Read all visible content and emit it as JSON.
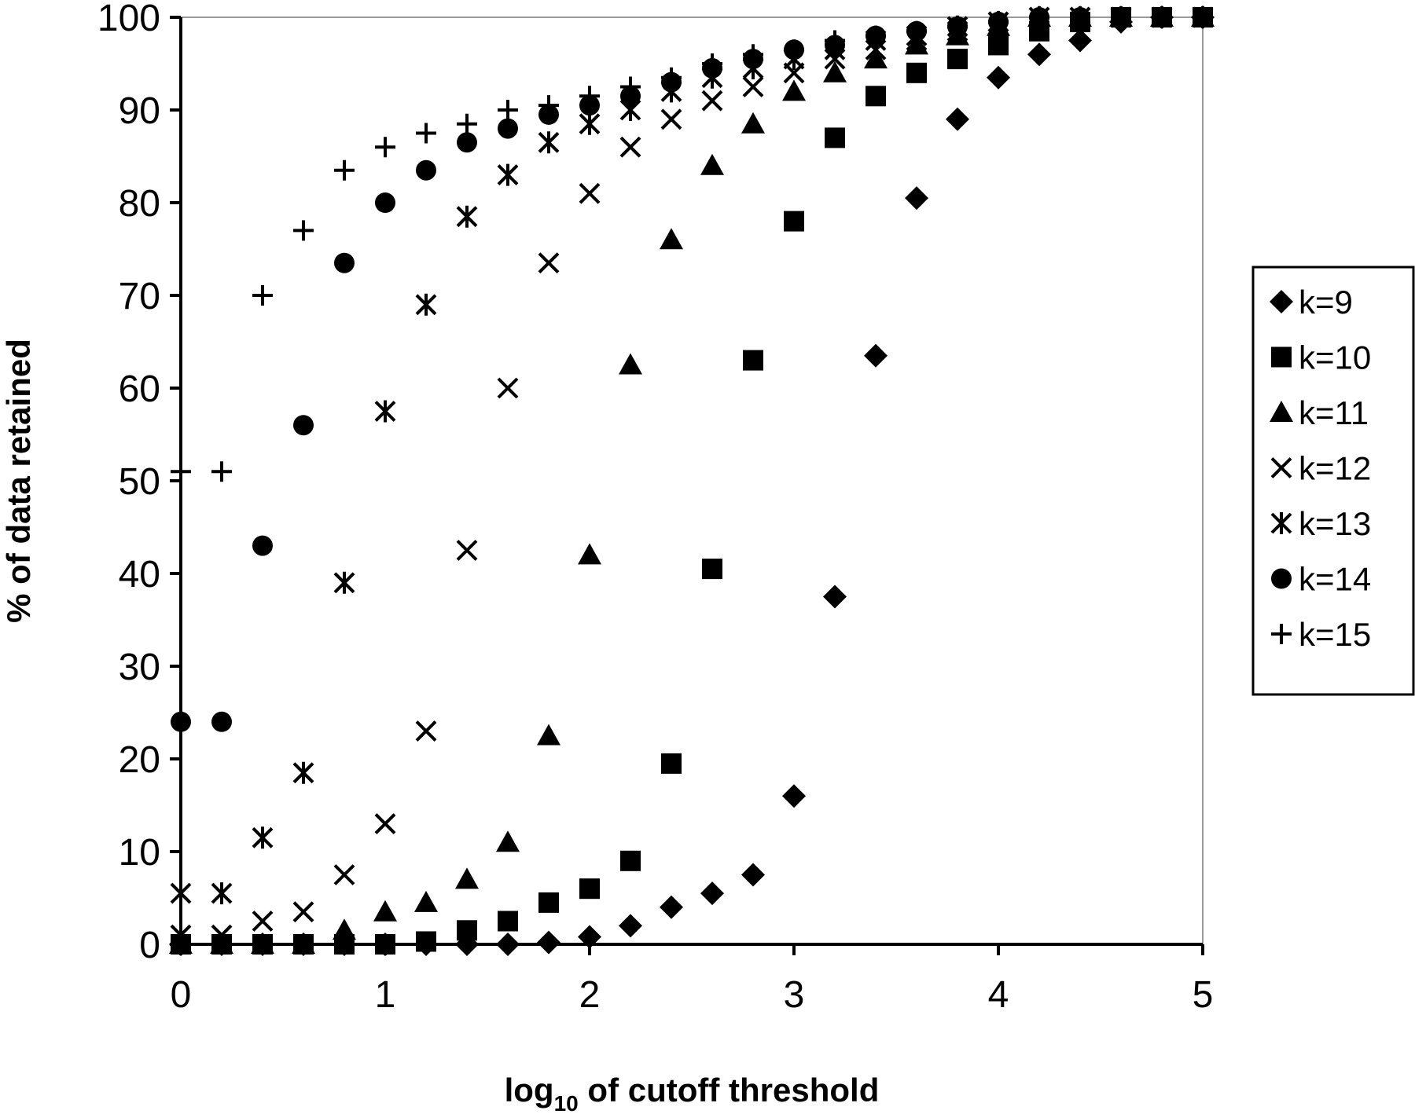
{
  "chart_data": {
    "type": "scatter",
    "title": "",
    "xlabel": {
      "base": "log",
      "subscript": "10",
      "rest": " of cutoff threshold"
    },
    "ylabel": "% of data retained",
    "xlim": [
      0,
      5
    ],
    "ylim": [
      0,
      100
    ],
    "x_ticks": [
      "0",
      "1",
      "2",
      "3",
      "4",
      "5"
    ],
    "y_ticks": [
      "0",
      "10",
      "20",
      "30",
      "40",
      "50",
      "60",
      "70",
      "80",
      "90",
      "100"
    ],
    "grid": false,
    "legend_position": "right",
    "x": [
      0,
      0.2,
      0.4,
      0.6,
      0.8,
      1.0,
      1.2,
      1.4,
      1.6,
      1.8,
      2.0,
      2.2,
      2.4,
      2.6,
      2.8,
      3.0,
      3.2,
      3.4,
      3.6,
      3.8,
      4.0,
      4.2,
      4.4,
      4.6,
      4.8,
      5.0
    ],
    "series": [
      {
        "name": "k=9",
        "marker": "diamond",
        "values": [
          0,
          0,
          0,
          0,
          0,
          0,
          0,
          0,
          0,
          0.2,
          0.8,
          2,
          4,
          5.5,
          7.5,
          16,
          37.5,
          63.5,
          80.5,
          89,
          93.5,
          96,
          97.5,
          99.5,
          100,
          100
        ]
      },
      {
        "name": "k=10",
        "marker": "square",
        "values": [
          0,
          0,
          0,
          0,
          0,
          0,
          0.3,
          1.5,
          2.5,
          4.5,
          6,
          9,
          19.5,
          40.5,
          63,
          78,
          87,
          91.5,
          94,
          95.5,
          97,
          98.5,
          99.5,
          100,
          100,
          100
        ]
      },
      {
        "name": "k=11",
        "marker": "triangle",
        "values": [
          0,
          0,
          0,
          0,
          1.5,
          3.5,
          4.5,
          7,
          11,
          22.5,
          42,
          62.5,
          76,
          84,
          88.5,
          92,
          94,
          95.5,
          97,
          98,
          99,
          100,
          100,
          100,
          100,
          100
        ]
      },
      {
        "name": "k=12",
        "marker": "x",
        "values": [
          1,
          1,
          2.5,
          3.5,
          7.5,
          13,
          23,
          42.5,
          60,
          73.5,
          81,
          86,
          89,
          91,
          92.5,
          94,
          95.5,
          96.5,
          97.5,
          98.5,
          99.5,
          100,
          100,
          100,
          100,
          100
        ]
      },
      {
        "name": "k=13",
        "marker": "asterisk",
        "values": [
          5.5,
          5.5,
          11.5,
          18.5,
          39,
          57.5,
          69,
          78.5,
          83,
          86.5,
          88.5,
          90,
          92,
          93.5,
          94.5,
          95.5,
          96.5,
          97.5,
          98,
          99,
          99.5,
          100,
          100,
          100,
          100,
          100
        ]
      },
      {
        "name": "k=14",
        "marker": "circle",
        "values": [
          24,
          24,
          43,
          56,
          73.5,
          80,
          83.5,
          86.5,
          88,
          89.5,
          90.5,
          91.5,
          93,
          94.5,
          95.5,
          96.5,
          97,
          98,
          98.5,
          99,
          99.5,
          100,
          100,
          100,
          100,
          100
        ]
      },
      {
        "name": "k=15",
        "marker": "plus",
        "values": [
          51,
          51,
          70,
          77,
          83.5,
          86,
          87.5,
          88.5,
          90,
          90.5,
          91.5,
          92.5,
          93.5,
          95,
          96,
          96.5,
          97.5,
          98,
          98.5,
          99,
          99.5,
          100,
          100,
          100,
          100,
          100
        ]
      }
    ]
  }
}
